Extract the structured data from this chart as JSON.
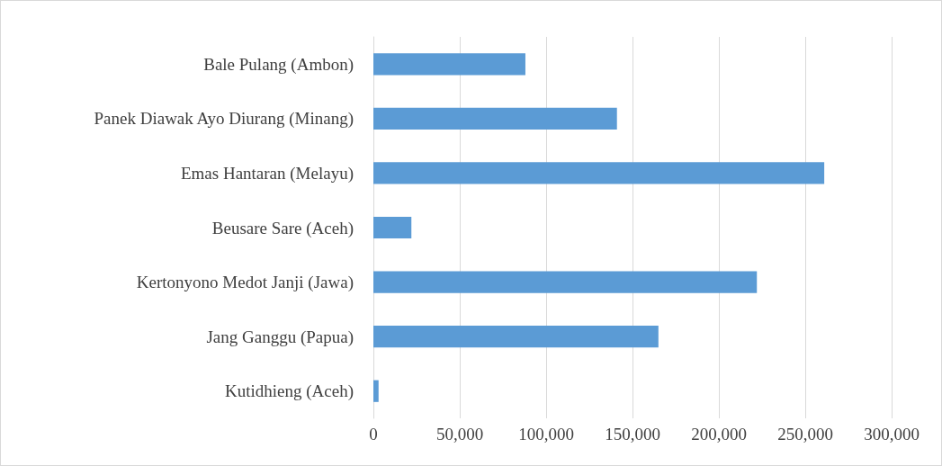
{
  "chart_data": {
    "type": "bar",
    "orientation": "horizontal",
    "categories": [
      "Bale Pulang (Ambon)",
      "Panek Diawak Ayo Diurang (Minang)",
      "Emas Hantaran (Melayu)",
      "Beusare Sare (Aceh)",
      "Kertonyono Medot Janji (Jawa)",
      "Jang Ganggu (Papua)",
      "Kutidhieng (Aceh)"
    ],
    "values": [
      88000,
      141000,
      261000,
      22000,
      222000,
      165000,
      3000
    ],
    "color": "#5b9bd5",
    "xlim": [
      0,
      300000
    ],
    "xticks": [
      0,
      {
        "value": 50000,
        "label": "50,000"
      },
      {
        "value": 100000,
        "label": "100,000"
      },
      {
        "value": 150000,
        "label": "150,000"
      },
      {
        "value": 200000,
        "label": "200,000"
      },
      {
        "value": 250000,
        "label": "250,000"
      },
      {
        "value": 300000,
        "label": "300,000"
      }
    ],
    "grid": "x"
  }
}
